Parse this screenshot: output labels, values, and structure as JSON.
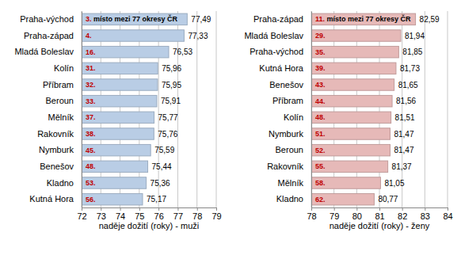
{
  "chart_data": [
    {
      "type": "bar",
      "orientation": "horizontal",
      "categories": [
        "Praha-východ",
        "Praha-západ",
        "Mladá Boleslav",
        "Kolín",
        "Příbram",
        "Beroun",
        "Mělník",
        "Rakovník",
        "Nymburk",
        "Benešov",
        "Kladno",
        "Kutná Hora"
      ],
      "values": [
        77.49,
        77.33,
        76.53,
        75.96,
        75.95,
        75.91,
        75.77,
        75.76,
        75.59,
        75.44,
        75.36,
        75.17
      ],
      "value_labels": [
        "77,49",
        "77,33",
        "76,53",
        "75,96",
        "75,95",
        "75,91",
        "75,77",
        "75,76",
        "75,59",
        "75,44",
        "75,36",
        "75,17"
      ],
      "annotations": [
        "3. místo mezi 77 okresy ČR",
        "4.",
        "16.",
        "31.",
        "32.",
        "33.",
        "37.",
        "38.",
        "45.",
        "48.",
        "53.",
        "56."
      ],
      "color": "#b9cde5",
      "xlabel": "naděje dožití (roky) - muži",
      "xlim": [
        72,
        79
      ],
      "xticks": [
        72,
        73,
        74,
        75,
        76,
        77,
        78,
        79
      ],
      "grid": true,
      "data_labels": true
    },
    {
      "type": "bar",
      "orientation": "horizontal",
      "categories": [
        "Praha-západ",
        "Mladá Boleslav",
        "Praha-východ",
        "Kutná Hora",
        "Benešov",
        "Příbram",
        "Kolín",
        "Nymburk",
        "Beroun",
        "Rakovník",
        "Mělník",
        "Kladno"
      ],
      "values": [
        82.59,
        81.94,
        81.85,
        81.73,
        81.65,
        81.56,
        81.51,
        81.47,
        81.47,
        81.37,
        81.05,
        80.77
      ],
      "value_labels": [
        "82,59",
        "81,94",
        "81,85",
        "81,73",
        "81,65",
        "81,56",
        "81,51",
        "81,47",
        "81,47",
        "81,37",
        "81,05",
        "80,77"
      ],
      "annotations": [
        "11. místo mezi 77 okresy ČR",
        "29.",
        "35.",
        "39.",
        "43.",
        "44.",
        "48.",
        "51.",
        "52.",
        "55.",
        "58.",
        "62."
      ],
      "color": "#e6b9b8",
      "xlabel": "naděje dožití (roky) - ženy",
      "xlim": [
        78,
        84
      ],
      "xticks": [
        78,
        79,
        80,
        81,
        82,
        83,
        84
      ],
      "grid": true,
      "data_labels": true
    }
  ]
}
